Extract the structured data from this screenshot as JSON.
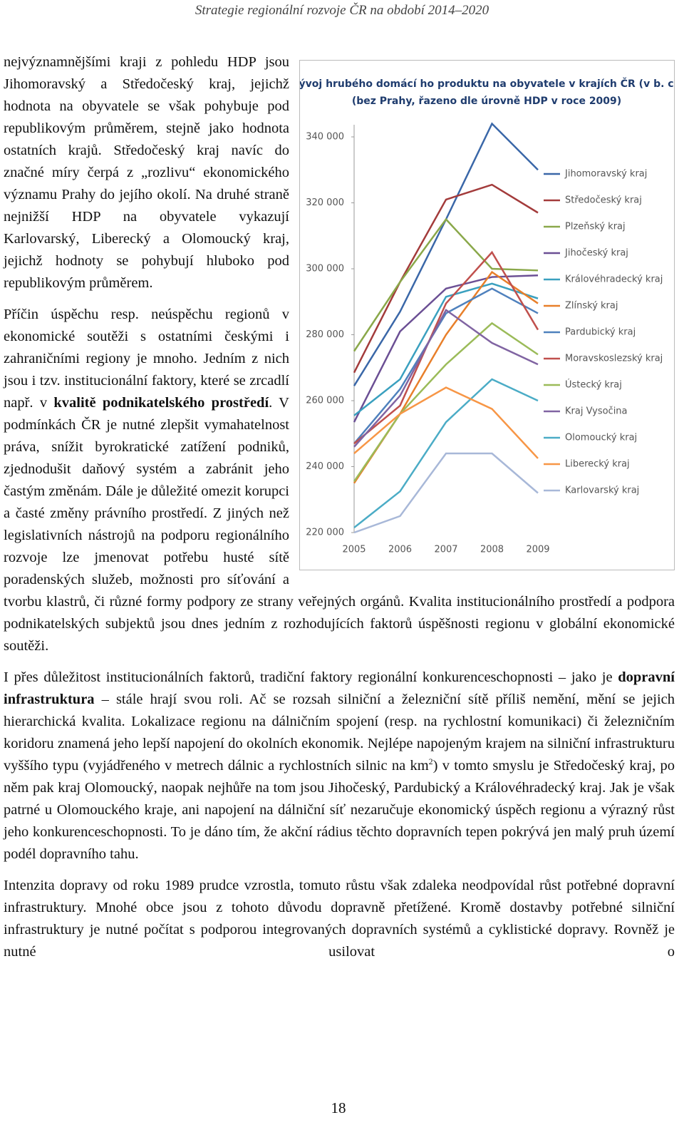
{
  "header": {
    "title": "Strategie regionální rozvoje ČR na období 2014–2020"
  },
  "paragraphs": [
    {
      "parts": [
        "nejvýznamnějšími kraji z pohledu HDP jsou Jihomoravský a Středočeský kraj, jejichž hodnota na obyvatele se však pohybuje pod republikovým průměrem, stejně jako hodnota ostatních krajů. Středočeský kraj navíc do značné míry čerpá z „rozlivu“ ekonomického významu Prahy do jejího okolí. Na druhé straně nejnižší HDP na obyvatele vykazují Karlovarský, Liberecký a Olomoucký kraj, jejichž hodnoty se pohybují hluboko pod republikovým průměrem."
      ]
    },
    {
      "parts": [
        "Příčin úspěchu resp. neúspěchu regionů v ekonomické soutěži s ostatními českými i zahraničními regiony je mnoho. Jedním z nich jsou i tzv. institucionální faktory, které se zrcadlí např. v ",
        "kvalitě podnikatelského prostředí",
        ". V podmínkách ČR je nutné zlepšit vymahatelnost práva, snížit byrokratické zatížení podniků, zjednodušit daňový systém a zabránit jeho častým změnám. Dále je důležité omezit korupci a časté změny právního prostředí. Z jiných než legislativních nástrojů na podporu regionálního rozvoje lze jmenovat potřebu husté sítě poradenských služeb, možnosti pro síťování a tvorbu klastrů, či různé formy podpory ze strany veřejných orgánů. Kvalita institucionálního prostředí a podpora podnikatelských subjektů jsou dnes jedním z rozhodujících faktorů úspěšnosti regionu v globální ekonomické soutěži."
      ]
    },
    {
      "parts": [
        "I přes důležitost institucionálních faktorů, tradiční faktory regionální konkurenceschopnosti – jako je ",
        "dopravní infrastruktura",
        " – stále hrají svou roli. Ač se rozsah silniční a železniční sítě příliš nemění, mění se jejich hierarchická kvalita. Lokalizace regionu na dálničním spojení (resp. na rychlostní komunikaci) či železničním koridoru znamená jeho lepší napojení do okolních ekonomik. Nejlépe napojeným krajem na silniční infrastrukturu vyššího typu (vyjádřeného v metrech dálnic a rychlostních silnic na km",
        "2",
        ") v tomto smyslu je Středočeský kraj, po něm pak kraj Olomoucký, naopak nejhůře na tom jsou Jihočeský, Pardubický a Královéhradecký kraj. Jak je však patrné u Olomouckého kraje, ani napojení na dálniční síť nezaručuje ekonomický úspěch regionu a výrazný růst jeho konkurenceschopnosti. To je dáno tím, že akční rádius těchto dopravních tepen pokrývá jen malý pruh území podél dopravního tahu."
      ]
    },
    {
      "parts": [
        "Intenzita dopravy od roku 1989 prudce vzrostla, tomuto růstu však zdaleka neodpovídal růst potřebné dopravní infrastruktury. Mnohé obce jsou z tohoto důvodu dopravně přetížené. Kromě dostavby potřebné silniční infrastruktury je nutné počítat s podporou integrovaných dopravních systémů a cyklistické dopravy. Rovněž je nutné usilovat o"
      ]
    }
  ],
  "page_number": "18",
  "chart_data": {
    "type": "line",
    "title": "Vývoj hrubého domácí ho produktu na obyvatele v krajích ČR (v b. c.)",
    "subtitle": "(bez Prahy, řazeno dle úrovně HDP v roce 2009)",
    "categories": [
      "2005",
      "2006",
      "2007",
      "2008",
      "2009"
    ],
    "ylim": [
      220000,
      340000
    ],
    "yticks": [
      {
        "value": 220000,
        "label": "220 000"
      },
      {
        "value": 240000,
        "label": "240 000"
      },
      {
        "value": 260000,
        "label": "260 000"
      },
      {
        "value": 280000,
        "label": "280 000"
      },
      {
        "value": 300000,
        "label": "300 000"
      },
      {
        "value": 320000,
        "label": "320 000"
      },
      {
        "value": 340000,
        "label": "340 000"
      }
    ],
    "grid": false,
    "series": [
      {
        "name": "Jihomoravský kraj",
        "color": "#3a67a8",
        "values": [
          264500,
          287000,
          315000,
          344000,
          330000
        ]
      },
      {
        "name": "Středočeský kraj",
        "color": "#a33b3b",
        "values": [
          268500,
          296000,
          321000,
          325500,
          317000
        ]
      },
      {
        "name": "Plzeňský kraj",
        "color": "#8aa84a",
        "values": [
          275000,
          296000,
          315000,
          300000,
          299500
        ]
      },
      {
        "name": "Jihočeský kraj",
        "color": "#6b4f94",
        "values": [
          253500,
          281000,
          294000,
          297500,
          298000
        ]
      },
      {
        "name": "Královéhradecký kraj",
        "color": "#3aa0bf",
        "values": [
          255500,
          266500,
          291500,
          295500,
          291000
        ]
      },
      {
        "name": "Zlínský kraj",
        "color": "#e87f2a",
        "values": [
          235000,
          256000,
          280000,
          299000,
          289500
        ]
      },
      {
        "name": "Pardubický kraj",
        "color": "#4f81bd",
        "values": [
          247000,
          263500,
          286500,
          294000,
          286500
        ]
      },
      {
        "name": "Moravskoslezský kraj",
        "color": "#c0504d",
        "values": [
          247000,
          258500,
          289500,
          305000,
          281500
        ]
      },
      {
        "name": "Ústecký kraj",
        "color": "#9bbb59",
        "values": [
          235500,
          256000,
          271000,
          283500,
          274000
        ]
      },
      {
        "name": "Kraj Vysočina",
        "color": "#8064a2",
        "values": [
          246000,
          261500,
          287500,
          277500,
          271000
        ]
      },
      {
        "name": "Olomoucký kraj",
        "color": "#4bacc6",
        "values": [
          221500,
          232500,
          253500,
          266500,
          260000
        ]
      },
      {
        "name": "Liberecký kraj",
        "color": "#f79646",
        "values": [
          244000,
          256000,
          264000,
          257500,
          242500
        ]
      },
      {
        "name": "Karlovarský kraj",
        "color": "#a8b8d8",
        "values": [
          220000,
          225000,
          244000,
          244000,
          232000
        ]
      }
    ]
  }
}
